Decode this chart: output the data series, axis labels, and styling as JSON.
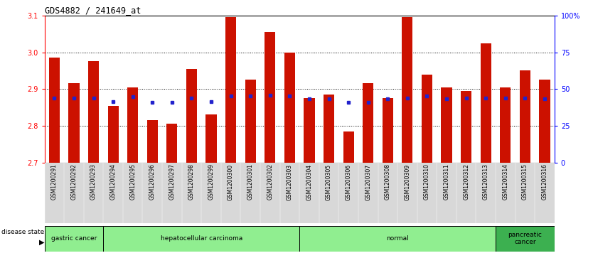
{
  "title": "GDS4882 / 241649_at",
  "samples": [
    "GSM1200291",
    "GSM1200292",
    "GSM1200293",
    "GSM1200294",
    "GSM1200295",
    "GSM1200296",
    "GSM1200297",
    "GSM1200298",
    "GSM1200299",
    "GSM1200300",
    "GSM1200301",
    "GSM1200302",
    "GSM1200303",
    "GSM1200304",
    "GSM1200305",
    "GSM1200306",
    "GSM1200307",
    "GSM1200308",
    "GSM1200309",
    "GSM1200310",
    "GSM1200311",
    "GSM1200312",
    "GSM1200313",
    "GSM1200314",
    "GSM1200315",
    "GSM1200316"
  ],
  "transformed_count": [
    2.985,
    2.915,
    2.975,
    2.855,
    2.905,
    2.815,
    2.805,
    2.955,
    2.83,
    3.095,
    2.925,
    3.055,
    3.0,
    2.875,
    2.885,
    2.785,
    2.915,
    2.875,
    3.095,
    2.94,
    2.905,
    2.895,
    3.025,
    2.905,
    2.95,
    2.925
  ],
  "percentile_rank_left": [
    2.875,
    2.875,
    2.875,
    2.865,
    2.88,
    2.863,
    2.863,
    2.875,
    2.865,
    2.882,
    2.882,
    2.883,
    2.882,
    2.874,
    2.874,
    2.863,
    2.863,
    2.874,
    2.876,
    2.882,
    2.874,
    2.875,
    2.875,
    2.875,
    2.875,
    2.874
  ],
  "ylim_left": [
    2.7,
    3.1
  ],
  "ylim_right": [
    0,
    100
  ],
  "bar_color": "#CC1100",
  "dot_color": "#2222CC",
  "disease_groups": [
    {
      "label": "gastric cancer",
      "start": 0,
      "end": 3
    },
    {
      "label": "hepatocellular carcinoma",
      "start": 3,
      "end": 13
    },
    {
      "label": "normal",
      "start": 13,
      "end": 23
    },
    {
      "label": "pancreatic\ncancer",
      "start": 23,
      "end": 26
    }
  ],
  "left_yticks": [
    2.7,
    2.8,
    2.9,
    3.0,
    3.1
  ],
  "right_yticklabels": [
    "0",
    "25",
    "50",
    "75",
    "100%"
  ],
  "right_yticks": [
    0,
    25,
    50,
    75,
    100
  ]
}
